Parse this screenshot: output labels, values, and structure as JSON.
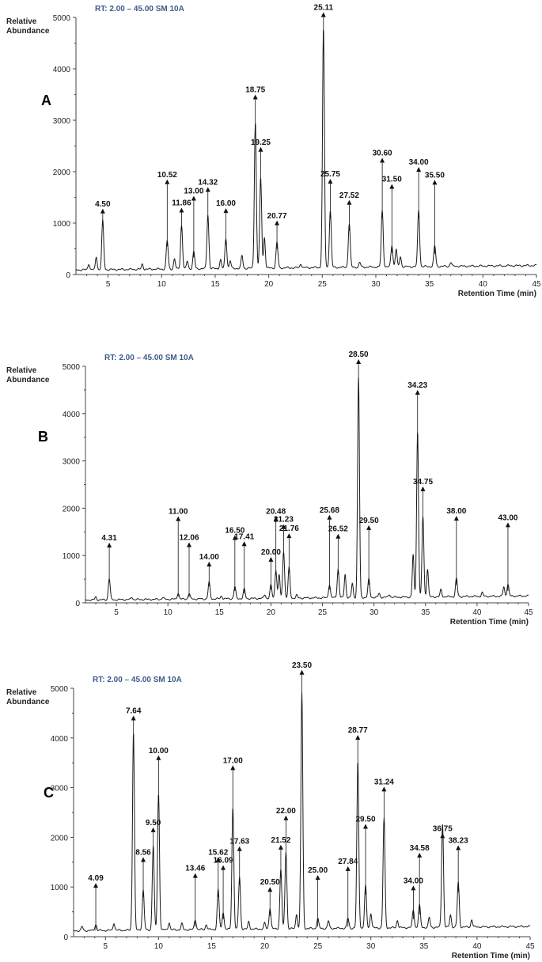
{
  "chart_data": [
    {
      "type": "line",
      "panel_label": "A",
      "header": "RT:  2.00 – 45.00    SM 10A",
      "ylabel": "Relative Abundance",
      "xlabel": "Retention Time (min)",
      "xlim": [
        2,
        45
      ],
      "ylim": [
        0,
        5000
      ],
      "xticks": [
        5,
        10,
        15,
        20,
        25,
        30,
        35,
        40,
        45
      ],
      "yticks": [
        0,
        1000,
        2000,
        3000,
        4000,
        5000
      ],
      "peaks": [
        {
          "rt": 4.5,
          "label": "4.50",
          "height": 950,
          "label_y": 1280
        },
        {
          "rt": 10.52,
          "label": "10.52",
          "height": 550,
          "label_y": 1850
        },
        {
          "rt": 11.86,
          "label": "11.86",
          "height": 850,
          "label_y": 1300
        },
        {
          "rt": 13.0,
          "label": "13.00",
          "height": 330,
          "label_y": 1530
        },
        {
          "rt": 14.32,
          "label": "14.32",
          "height": 1050,
          "label_y": 1700
        },
        {
          "rt": 16.0,
          "label": "16.00",
          "height": 580,
          "label_y": 1290
        },
        {
          "rt": 18.75,
          "label": "18.75",
          "height": 2850,
          "label_y": 3500
        },
        {
          "rt": 19.25,
          "label": "19.25",
          "height": 1750,
          "label_y": 2480
        },
        {
          "rt": 20.77,
          "label": "20.77",
          "height": 500,
          "label_y": 1050
        },
        {
          "rt": 25.11,
          "label": "25.11",
          "height": 4650,
          "label_y": 5100
        },
        {
          "rt": 25.75,
          "label": "25.75",
          "height": 1100,
          "label_y": 1860
        },
        {
          "rt": 27.52,
          "label": "27.52",
          "height": 850,
          "label_y": 1450
        },
        {
          "rt": 30.6,
          "label": "30.60",
          "height": 1100,
          "label_y": 2270
        },
        {
          "rt": 31.5,
          "label": "31.50",
          "height": 420,
          "label_y": 1760
        },
        {
          "rt": 34.0,
          "label": "34.00",
          "height": 1100,
          "label_y": 2090
        },
        {
          "rt": 35.5,
          "label": "35.50",
          "height": 400,
          "label_y": 1840
        }
      ],
      "minor_peaks": [
        [
          3.2,
          120
        ],
        [
          3.9,
          250
        ],
        [
          8.2,
          100
        ],
        [
          11.2,
          200
        ],
        [
          12.4,
          150
        ],
        [
          15.5,
          170
        ],
        [
          16.4,
          150
        ],
        [
          17.5,
          250
        ],
        [
          19.6,
          600
        ],
        [
          23.0,
          80
        ],
        [
          28.5,
          90
        ],
        [
          31.9,
          350
        ],
        [
          32.3,
          200
        ],
        [
          37.0,
          80
        ]
      ],
      "baseline": 90
    },
    {
      "type": "line",
      "panel_label": "B",
      "header": "RT:  2.00 – 45.00    SM 10A",
      "ylabel": "Relative Abundance",
      "xlabel": "Retention Time (min)",
      "xlim": [
        2,
        45
      ],
      "ylim": [
        0,
        5000
      ],
      "xticks": [
        5,
        10,
        15,
        20,
        25,
        30,
        35,
        40,
        45
      ],
      "yticks": [
        0,
        1000,
        2000,
        3000,
        4000,
        5000
      ],
      "peaks": [
        {
          "rt": 4.31,
          "label": "4.31",
          "height": 450,
          "label_y": 1270
        },
        {
          "rt": 11.0,
          "label": "11.00",
          "height": 130,
          "label_y": 1830
        },
        {
          "rt": 12.06,
          "label": "12.06",
          "height": 120,
          "label_y": 1280
        },
        {
          "rt": 14.0,
          "label": "14.00",
          "height": 350,
          "label_y": 870
        },
        {
          "rt": 16.5,
          "label": "16.50",
          "height": 250,
          "label_y": 1430
        },
        {
          "rt": 17.41,
          "label": "17.41",
          "height": 200,
          "label_y": 1300
        },
        {
          "rt": 20.0,
          "label": "20.00",
          "height": 280,
          "label_y": 970
        },
        {
          "rt": 20.48,
          "label": "20.48",
          "height": 600,
          "label_y": 1830
        },
        {
          "rt": 21.23,
          "label": "21.23",
          "height": 1000,
          "label_y": 1660
        },
        {
          "rt": 21.76,
          "label": "21.76",
          "height": 640,
          "label_y": 1470
        },
        {
          "rt": 25.68,
          "label": "25.68",
          "height": 280,
          "label_y": 1860
        },
        {
          "rt": 26.52,
          "label": "26.52",
          "height": 600,
          "label_y": 1460
        },
        {
          "rt": 28.5,
          "label": "28.50",
          "height": 4650,
          "label_y": 5150
        },
        {
          "rt": 29.5,
          "label": "29.50",
          "height": 380,
          "label_y": 1640
        },
        {
          "rt": 34.23,
          "label": "34.23",
          "height": 3500,
          "label_y": 4500
        },
        {
          "rt": 34.75,
          "label": "34.75",
          "height": 1700,
          "label_y": 2460
        },
        {
          "rt": 38.0,
          "label": "38.00",
          "height": 380,
          "label_y": 1840
        },
        {
          "rt": 43.0,
          "label": "43.00",
          "height": 250,
          "label_y": 1700
        }
      ],
      "minor_peaks": [
        [
          3.0,
          60
        ],
        [
          6.5,
          50
        ],
        [
          9.5,
          40
        ],
        [
          15.2,
          60
        ],
        [
          19.4,
          80
        ],
        [
          20.8,
          500
        ],
        [
          22.5,
          60
        ],
        [
          27.2,
          500
        ],
        [
          27.9,
          300
        ],
        [
          30.5,
          80
        ],
        [
          31.5,
          60
        ],
        [
          33.8,
          900
        ],
        [
          35.2,
          600
        ],
        [
          36.5,
          150
        ],
        [
          40.5,
          80
        ],
        [
          42.6,
          200
        ]
      ],
      "baseline": 60
    },
    {
      "type": "line",
      "panel_label": "C",
      "header": "RT:  2.00 – 45.00    SM 10A",
      "ylabel": "Relative Abundance",
      "xlabel": "Retention Time (min)",
      "xlim": [
        2,
        45
      ],
      "ylim": [
        0,
        5000
      ],
      "xticks": [
        5,
        10,
        15,
        20,
        25,
        30,
        35,
        40,
        45
      ],
      "yticks": [
        0,
        1000,
        2000,
        3000,
        4000,
        5000
      ],
      "peaks": [
        {
          "rt": 4.09,
          "label": "4.09",
          "height": 120,
          "label_y": 1080
        },
        {
          "rt": 7.64,
          "label": "7.64",
          "height": 4000,
          "label_y": 4450
        },
        {
          "rt": 8.56,
          "label": "8.56",
          "height": 800,
          "label_y": 1600
        },
        {
          "rt": 9.5,
          "label": "9.50",
          "height": 1700,
          "label_y": 2200
        },
        {
          "rt": 10.0,
          "label": "10.00",
          "height": 2750,
          "label_y": 3650
        },
        {
          "rt": 13.46,
          "label": "13.46",
          "height": 200,
          "label_y": 1280
        },
        {
          "rt": 15.62,
          "label": "15.62",
          "height": 800,
          "label_y": 1600
        },
        {
          "rt": 16.09,
          "label": "16.09",
          "height": 350,
          "label_y": 1440
        },
        {
          "rt": 17.0,
          "label": "17.00",
          "height": 2450,
          "label_y": 3450
        },
        {
          "rt": 17.63,
          "label": "17.63",
          "height": 1050,
          "label_y": 1820
        },
        {
          "rt": 20.5,
          "label": "20.50",
          "height": 420,
          "label_y": 1000
        },
        {
          "rt": 21.52,
          "label": "21.52",
          "height": 1200,
          "label_y": 1850
        },
        {
          "rt": 22.0,
          "label": "22.00",
          "height": 1550,
          "label_y": 2440
        },
        {
          "rt": 23.5,
          "label": "23.50",
          "height": 4750,
          "label_y": 5370
        },
        {
          "rt": 25.0,
          "label": "25.00",
          "height": 200,
          "label_y": 1240
        },
        {
          "rt": 27.84,
          "label": "27.84",
          "height": 200,
          "label_y": 1420
        },
        {
          "rt": 28.77,
          "label": "28.77",
          "height": 3350,
          "label_y": 4060
        },
        {
          "rt": 29.5,
          "label": "29.50",
          "height": 850,
          "label_y": 2270
        },
        {
          "rt": 31.24,
          "label": "31.24",
          "height": 2200,
          "label_y": 3020
        },
        {
          "rt": 34.0,
          "label": "34.00",
          "height": 350,
          "label_y": 1030
        },
        {
          "rt": 34.58,
          "label": "34.58",
          "height": 450,
          "label_y": 1690
        },
        {
          "rt": 36.75,
          "label": "36.75",
          "height": 2100,
          "label_y": 2080
        },
        {
          "rt": 38.23,
          "label": "38.23",
          "height": 900,
          "label_y": 1840
        }
      ],
      "minor_peaks": [
        [
          2.8,
          80
        ],
        [
          5.8,
          150
        ],
        [
          11.0,
          150
        ],
        [
          12.2,
          120
        ],
        [
          14.5,
          100
        ],
        [
          18.5,
          150
        ],
        [
          20.0,
          120
        ],
        [
          23.0,
          300
        ],
        [
          26.0,
          150
        ],
        [
          30.0,
          300
        ],
        [
          32.5,
          150
        ],
        [
          35.5,
          200
        ],
        [
          37.5,
          250
        ],
        [
          39.5,
          150
        ]
      ],
      "baseline": 120
    }
  ]
}
